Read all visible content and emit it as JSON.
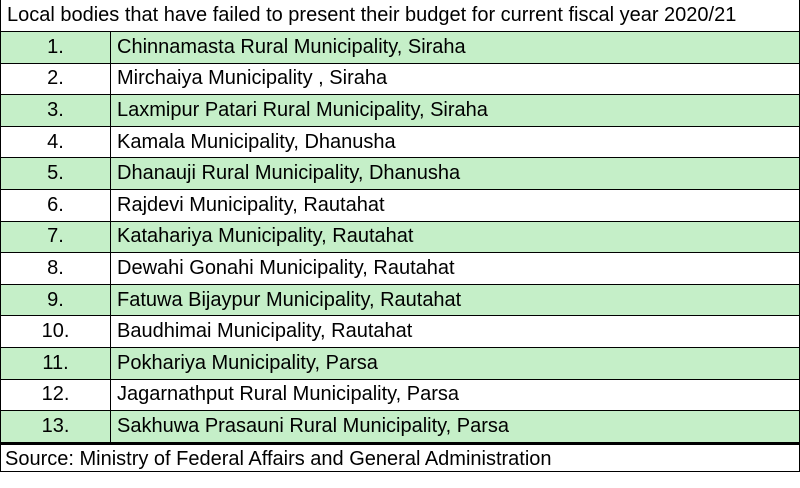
{
  "title": "Local bodies that have failed to present their budget for current fiscal year 2020/21",
  "colors": {
    "row_highlight": "#c5efc8",
    "row_plain": "#ffffff",
    "border": "#000000"
  },
  "rows": [
    {
      "num": "1.",
      "name": "Chinnamasta Rural Municipality, Siraha"
    },
    {
      "num": "2.",
      "name": "Mirchaiya Municipality , Siraha"
    },
    {
      "num": "3.",
      "name": "Laxmipur Patari Rural Municipality, Siraha"
    },
    {
      "num": "4.",
      "name": "Kamala Municipality, Dhanusha"
    },
    {
      "num": "5.",
      "name": "Dhanauji Rural Municipality, Dhanusha"
    },
    {
      "num": "6.",
      "name": "Rajdevi Municipality, Rautahat"
    },
    {
      "num": "7.",
      "name": "Katahariya Municipality, Rautahat"
    },
    {
      "num": "8.",
      "name": "Dewahi Gonahi Municipality, Rautahat"
    },
    {
      "num": "9.",
      "name": "Fatuwa Bijaypur Municipality, Rautahat"
    },
    {
      "num": "10.",
      "name": "Baudhimai Municipality, Rautahat"
    },
    {
      "num": "11.",
      "name": "Pokhariya Municipality, Parsa"
    },
    {
      "num": "12.",
      "name": "Jagarnathput Rural Municipality, Parsa"
    },
    {
      "num": "13.",
      "name": "Sakhuwa Prasauni Rural Municipality, Parsa"
    }
  ],
  "source": "Source: Ministry of Federal Affairs and General Administration"
}
